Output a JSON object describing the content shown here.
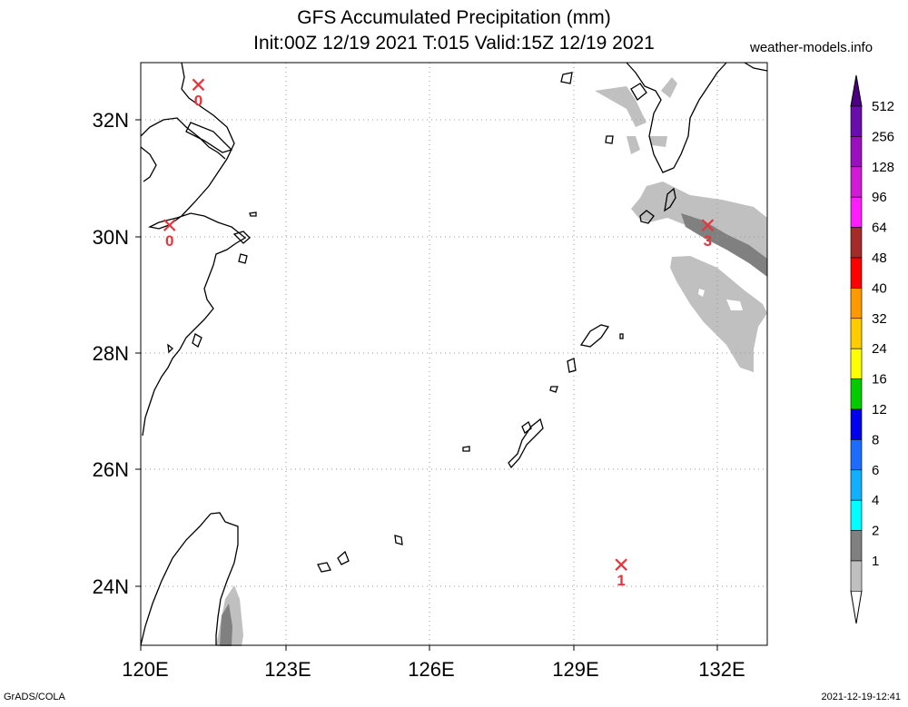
{
  "header": {
    "title_line1": "GFS Accumulated Precipitation (mm)",
    "title_line2": "Init:00Z 12/19 2021 T:015 Valid:15Z 12/19 2021",
    "site": "weather-models.info"
  },
  "footer": {
    "left": "GrADS/COLA",
    "right": "2021-12-19-12:41"
  },
  "map": {
    "lon_labels": [
      "120E",
      "123E",
      "126E",
      "129E",
      "132E"
    ],
    "lat_labels": [
      "32N",
      "30N",
      "28N",
      "26N",
      "24N"
    ],
    "markers": [
      {
        "lon": 121.2,
        "lat": 32.6,
        "value": "0"
      },
      {
        "lon": 120.6,
        "lat": 30.2,
        "value": "0"
      },
      {
        "lon": 131.8,
        "lat": 30.2,
        "value": "3"
      },
      {
        "lon": 130.0,
        "lat": 24.4,
        "value": "1"
      }
    ],
    "marker_color": "#e8343a",
    "coast_color": "#000000",
    "grid_style": "dotted"
  },
  "colorbar": {
    "levels": [
      {
        "label": "512",
        "color": "#6a0dad"
      },
      {
        "label": "256",
        "color": "#9a10c0"
      },
      {
        "label": "128",
        "color": "#d21ad6"
      },
      {
        "label": "96",
        "color": "#ff1cff"
      },
      {
        "label": "64",
        "color": "#a52a2a"
      },
      {
        "label": "48",
        "color": "#ff0000"
      },
      {
        "label": "40",
        "color": "#ff9900"
      },
      {
        "label": "32",
        "color": "#ffcc00"
      },
      {
        "label": "24",
        "color": "#ffff00"
      },
      {
        "label": "16",
        "color": "#00cc00"
      },
      {
        "label": "12",
        "color": "#0000ee"
      },
      {
        "label": "8",
        "color": "#1c6cff"
      },
      {
        "label": "6",
        "color": "#10b0ff"
      },
      {
        "label": "4",
        "color": "#00ffff"
      },
      {
        "label": "2",
        "color": "#808080"
      },
      {
        "label": "1",
        "color": "#c0c0c0"
      }
    ]
  }
}
